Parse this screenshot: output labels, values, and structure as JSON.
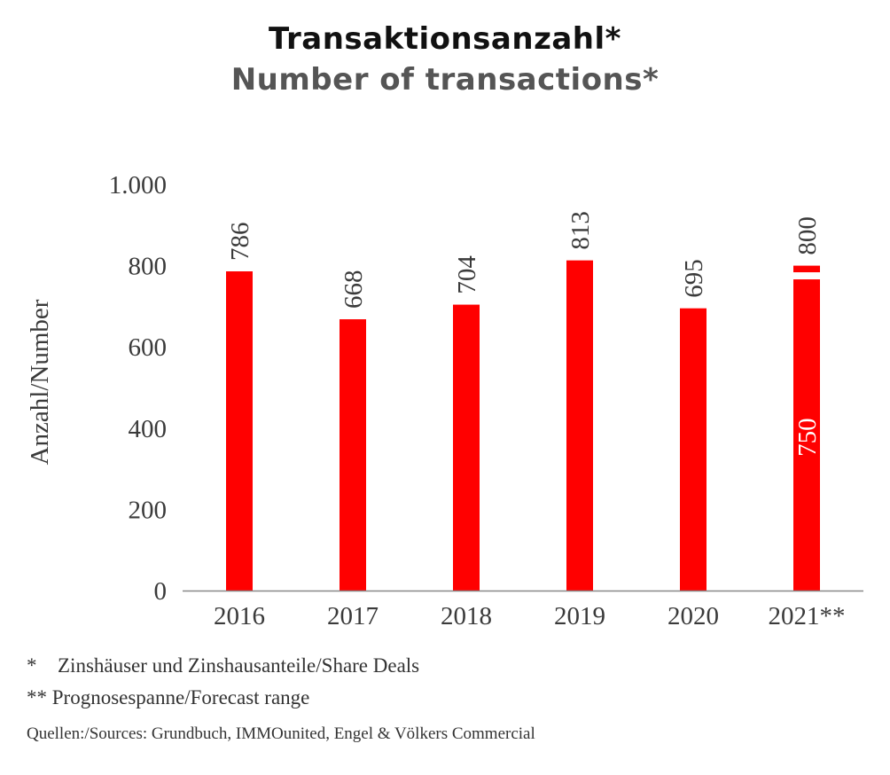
{
  "title": "Transaktionsanzahl*",
  "subtitle": "Number of transactions*",
  "chart_data": {
    "type": "bar",
    "categories": [
      "2016",
      "2017",
      "2018",
      "2019",
      "2020",
      "2021**"
    ],
    "values": [
      786,
      668,
      704,
      813,
      695,
      800
    ],
    "value_labels": [
      "786",
      "668",
      "704",
      "813",
      "695",
      "800"
    ],
    "range_low": {
      "category": "2021**",
      "value": 750,
      "label": "750"
    },
    "ylabel": "Anzahl/Number",
    "ylim": [
      0,
      1000
    ],
    "yticks": [
      0,
      200,
      400,
      600,
      800,
      1000
    ],
    "ytick_labels": [
      "0",
      "200",
      "400",
      "600",
      "800",
      "1.000"
    ],
    "grid": false,
    "colors": {
      "bar": "#ff0000",
      "axis": "#888888",
      "text": "#3a3a3a"
    }
  },
  "footnotes": {
    "note1_mark": "*",
    "note1_text": "Zinshäuser und Zinshausanteile/Share Deals",
    "note2_mark": "**",
    "note2_text": "Prognosespanne/Forecast range",
    "sources": "Quellen:/Sources: Grundbuch, IMMOunited, Engel & Völkers Commercial"
  }
}
